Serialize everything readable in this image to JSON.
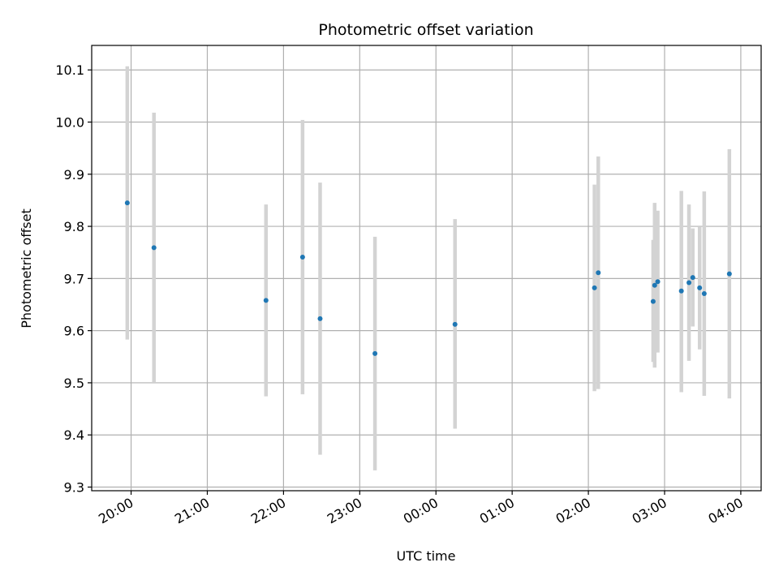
{
  "chart_data": {
    "type": "scatter",
    "title": "Photometric offset variation",
    "xlabel": "UTC time",
    "ylabel": "Photometric offset",
    "x_unit": "hours",
    "xlim": [
      19.483,
      28.267
    ],
    "ylim": [
      9.293,
      10.147
    ],
    "grid": true,
    "x_tick_values": [
      20,
      21,
      22,
      23,
      24,
      25,
      26,
      27,
      28
    ],
    "x_tick_labels": [
      "20:00",
      "21:00",
      "22:00",
      "23:00",
      "00:00",
      "01:00",
      "02:00",
      "03:00",
      "04:00"
    ],
    "y_tick_values": [
      9.3,
      9.4,
      9.5,
      9.6,
      9.7,
      9.8,
      9.9,
      10.0,
      10.1
    ],
    "y_tick_labels": [
      "9.3",
      "9.4",
      "9.5",
      "9.6",
      "9.7",
      "9.8",
      "9.9",
      "10.0",
      "10.1"
    ],
    "point_color": "#1f77b4",
    "errorbar_color": "#d3d3d3",
    "points": [
      {
        "x": 19.95,
        "y": 9.845,
        "ylow": 9.583,
        "yhigh": 10.107
      },
      {
        "x": 20.3,
        "y": 9.759,
        "ylow": 9.5,
        "yhigh": 10.018
      },
      {
        "x": 21.77,
        "y": 9.658,
        "ylow": 9.474,
        "yhigh": 9.842
      },
      {
        "x": 22.25,
        "y": 9.741,
        "ylow": 9.478,
        "yhigh": 10.004
      },
      {
        "x": 22.48,
        "y": 9.623,
        "ylow": 9.362,
        "yhigh": 9.884
      },
      {
        "x": 23.2,
        "y": 9.556,
        "ylow": 9.332,
        "yhigh": 9.78
      },
      {
        "x": 24.25,
        "y": 9.612,
        "ylow": 9.412,
        "yhigh": 9.814
      },
      {
        "x": 26.08,
        "y": 9.682,
        "ylow": 9.484,
        "yhigh": 9.88
      },
      {
        "x": 26.13,
        "y": 9.711,
        "ylow": 9.488,
        "yhigh": 9.934
      },
      {
        "x": 26.85,
        "y": 9.656,
        "ylow": 9.54,
        "yhigh": 9.774
      },
      {
        "x": 26.87,
        "y": 9.687,
        "ylow": 9.529,
        "yhigh": 9.845
      },
      {
        "x": 26.91,
        "y": 9.694,
        "ylow": 9.558,
        "yhigh": 9.83
      },
      {
        "x": 27.22,
        "y": 9.676,
        "ylow": 9.482,
        "yhigh": 9.868
      },
      {
        "x": 27.32,
        "y": 9.692,
        "ylow": 9.542,
        "yhigh": 9.842
      },
      {
        "x": 27.37,
        "y": 9.702,
        "ylow": 9.608,
        "yhigh": 9.796
      },
      {
        "x": 27.46,
        "y": 9.682,
        "ylow": 9.564,
        "yhigh": 9.8
      },
      {
        "x": 27.52,
        "y": 9.671,
        "ylow": 9.475,
        "yhigh": 9.867
      },
      {
        "x": 27.85,
        "y": 9.709,
        "ylow": 9.47,
        "yhigh": 9.948
      }
    ]
  }
}
